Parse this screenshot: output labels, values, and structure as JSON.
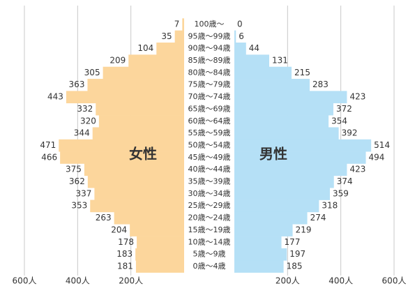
{
  "chart_data": {
    "type": "pyramid",
    "categories": [
      "100歳〜",
      "95歳〜99歳",
      "90歳〜94歳",
      "85歳〜89歳",
      "80歳〜84歳",
      "75歳〜79歳",
      "70歳〜74歳",
      "65歳〜69歳",
      "60歳〜64歳",
      "55歳〜59歳",
      "50歳〜54歳",
      "45歳〜49歳",
      "40歳〜44歳",
      "35歳〜39歳",
      "30歳〜34歳",
      "25歳〜29歳",
      "20歳〜24歳",
      "15歳〜19歳",
      "10歳〜14歳",
      "5歳〜9歳",
      "0歳〜4歳"
    ],
    "series": [
      {
        "name": "女性",
        "color": "#fcd69c",
        "values": [
          7,
          35,
          104,
          209,
          305,
          363,
          443,
          332,
          320,
          344,
          471,
          466,
          375,
          362,
          337,
          353,
          263,
          204,
          178,
          183,
          181
        ]
      },
      {
        "name": "男性",
        "color": "#b5e0f6",
        "values": [
          0,
          6,
          44,
          131,
          215,
          283,
          423,
          372,
          354,
          392,
          514,
          494,
          423,
          374,
          359,
          318,
          274,
          219,
          177,
          197,
          185
        ]
      }
    ],
    "xlim": [
      0,
      600
    ],
    "xticks": [
      {
        "value": 200,
        "label": "200人"
      },
      {
        "value": 400,
        "label": "400人"
      },
      {
        "value": 600,
        "label": "600人"
      }
    ],
    "grid": true
  }
}
